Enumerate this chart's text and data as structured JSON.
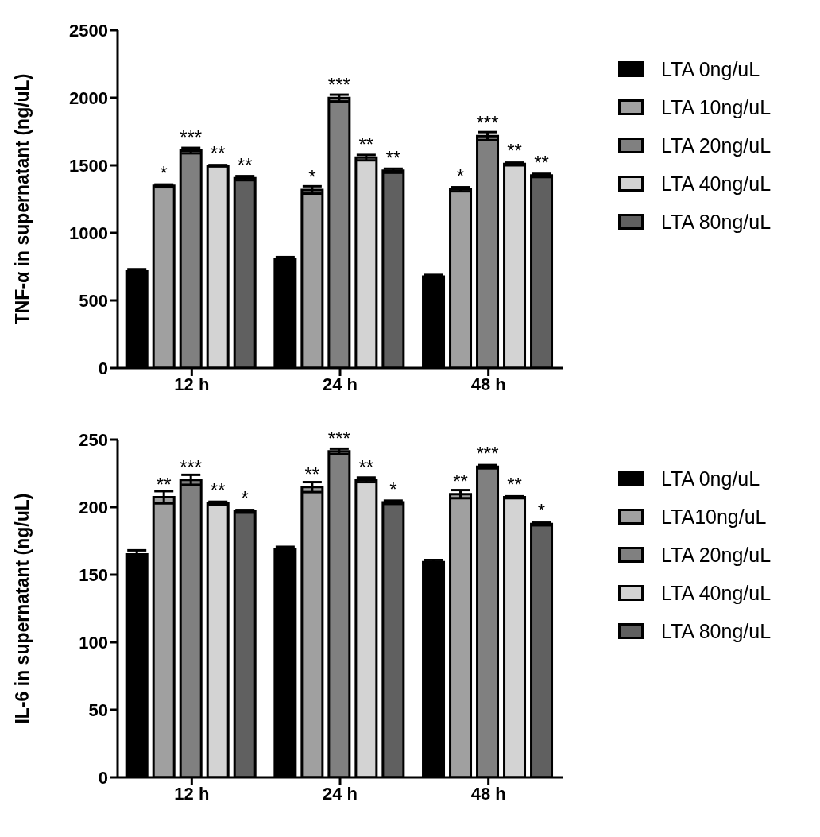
{
  "chart_data": [
    {
      "type": "bar",
      "ylabel": "TNF-α in supernatant (ng/uL)",
      "categories": [
        "12 h",
        "24 h",
        "48 h"
      ],
      "ylim": [
        0,
        2500
      ],
      "yticks": [
        0,
        500,
        1000,
        1500,
        2000,
        2500
      ],
      "legend": "right",
      "series": [
        {
          "name": "LTA 0ng/uL",
          "color": "#000000",
          "values": [
            714,
            806,
            677
          ],
          "errors": [
            17,
            15,
            12
          ]
        },
        {
          "name": "LTA 10ng/uL",
          "color": "#a0a0a0",
          "values": [
            1348,
            1318,
            1323
          ],
          "errors": [
            10,
            27,
            15
          ],
          "value_labels": [
            "*",
            "*",
            "*"
          ]
        },
        {
          "name": "LTA 20ng/uL",
          "color": "#808080",
          "values": [
            1609,
            1998,
            1716
          ],
          "errors": [
            20,
            25,
            30
          ],
          "value_labels": [
            "***",
            "***",
            "***"
          ]
        },
        {
          "name": "LTA 40ng/uL",
          "color": "#d3d3d3",
          "values": [
            1497,
            1557,
            1510
          ],
          "errors": [
            5,
            20,
            10
          ],
          "value_labels": [
            "**",
            "**",
            "**"
          ]
        },
        {
          "name": "LTA 80ng/uL",
          "color": "#606060",
          "values": [
            1405,
            1460,
            1425
          ],
          "errors": [
            15,
            15,
            12
          ],
          "value_labels": [
            "**",
            "**",
            "**"
          ]
        }
      ]
    },
    {
      "type": "bar",
      "ylabel": "IL-6 in supernatant (ng/uL)",
      "categories": [
        "12 h",
        "24 h",
        "48 h"
      ],
      "ylim": [
        0,
        250
      ],
      "yticks": [
        0,
        50,
        100,
        150,
        200,
        250
      ],
      "legend": "right",
      "series": [
        {
          "name": "LTA 0ng/uL",
          "color": "#000000",
          "values": [
            165,
            168.6,
            159.2
          ],
          "errors": [
            3,
            2,
            1.7
          ]
        },
        {
          "name": "LTA10ng/uL",
          "color": "#a0a0a0",
          "values": [
            207.3,
            214.8,
            209.6
          ],
          "errors": [
            4.5,
            3.7,
            3
          ],
          "value_labels": [
            "**",
            "**",
            "**"
          ]
        },
        {
          "name": "LTA 20ng/uL",
          "color": "#808080",
          "values": [
            220.2,
            241.3,
            229.9
          ],
          "errors": [
            3.7,
            2,
            1.2
          ],
          "value_labels": [
            "***",
            "***",
            "***"
          ]
        },
        {
          "name": "LTA 40ng/uL",
          "color": "#d3d3d3",
          "values": [
            202.8,
            220.2,
            207.3
          ],
          "errors": [
            1.2,
            1.7,
            0.7
          ],
          "value_labels": [
            "**",
            "**",
            "**"
          ]
        },
        {
          "name": "LTA 80ng/uL",
          "color": "#606060",
          "values": [
            196.9,
            203.6,
            187.5
          ],
          "errors": [
            1,
            1.2,
            1
          ],
          "value_labels": [
            "*",
            "*",
            "*"
          ]
        }
      ]
    }
  ]
}
